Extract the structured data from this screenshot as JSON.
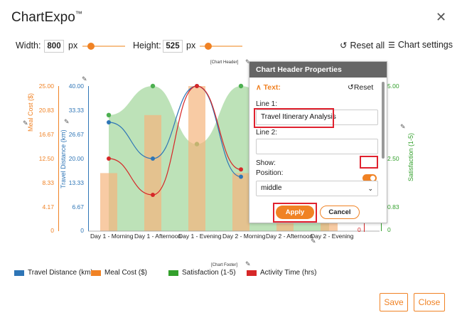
{
  "app": {
    "title": "ChartExpo",
    "trademark": "™"
  },
  "toolbar": {
    "width_label": "Width:",
    "width_value": "800",
    "width_unit": "px",
    "width_slider": 0.2,
    "height_label": "Height:",
    "height_value": "525",
    "height_unit": "px",
    "height_slider": 0.2,
    "reset_all": "Reset all",
    "chart_settings": "Chart settings"
  },
  "chart": {
    "header_tag": "[Chart Header]",
    "footer_tag": "[Chart Footer]"
  },
  "chart_data": {
    "type": "line",
    "categories": [
      "Day 1 - Morning",
      "Day 1 - Afternoon",
      "Day 1 - Evening",
      "Day 2 - Morning",
      "Day 2 - Afternoon",
      "Day 2 - Evening"
    ],
    "axes": {
      "meal_cost": {
        "label": "Meal Cost ($)",
        "ticks": [
          "25.00",
          "20.83",
          "16.67",
          "12.50",
          "8.33",
          "4.17",
          "0"
        ],
        "ylim": [
          0,
          25
        ],
        "color": "#f08224"
      },
      "travel_distance": {
        "label": "Travel Distance (km)",
        "ticks": [
          "40.00",
          "33.33",
          "26.67",
          "20.00",
          "13.33",
          "6.67",
          "0"
        ],
        "ylim": [
          0,
          40
        ],
        "color": "#2e75b6"
      },
      "satisfaction": {
        "label": "Satisfaction (1-5)",
        "ticks": [
          "5.00",
          "2.50",
          "0.83",
          "0"
        ],
        "ylim": [
          0,
          5
        ],
        "color": "#33a02c"
      },
      "activity_time": {
        "ticks": [
          "0"
        ],
        "color": "#d62728"
      }
    },
    "series": [
      {
        "name": "Travel Distance (km)",
        "color": "#2e75b6",
        "type": "line",
        "values": [
          30,
          20,
          40,
          15,
          null,
          null
        ]
      },
      {
        "name": "Meal Cost ($)",
        "color": "#f5b57d",
        "type": "bar",
        "values": [
          10,
          20,
          25,
          10,
          8,
          5
        ]
      },
      {
        "name": "Satisfaction (1-5)",
        "color": "#a7d8a0",
        "type": "area",
        "values": [
          4,
          5,
          3,
          5,
          4,
          4
        ]
      },
      {
        "name": "Activity Time (hrs)",
        "color": "#d62728",
        "type": "line",
        "values": [
          20,
          10,
          40,
          17,
          null,
          null
        ]
      }
    ]
  },
  "panel": {
    "title": "Chart Header Properties",
    "section": "Text:",
    "reset": "Reset",
    "line1_label": "Line 1:",
    "line1_value": "Travel Itinerary Analysis",
    "line2_label": "Line 2:",
    "line2_value": "",
    "show_label": "Show:",
    "position_label": "Position:",
    "position_value": "middle",
    "apply": "Apply",
    "cancel": "Cancel"
  },
  "legend": [
    {
      "label": "Travel Distance (km)",
      "color": "#2e75b6"
    },
    {
      "label": "Meal Cost ($)",
      "color": "#f08224"
    },
    {
      "label": "Satisfaction (1-5)",
      "color": "#33a02c"
    },
    {
      "label": "Activity Time (hrs)",
      "color": "#d62728"
    }
  ],
  "footer": {
    "save": "Save",
    "close": "Close"
  }
}
